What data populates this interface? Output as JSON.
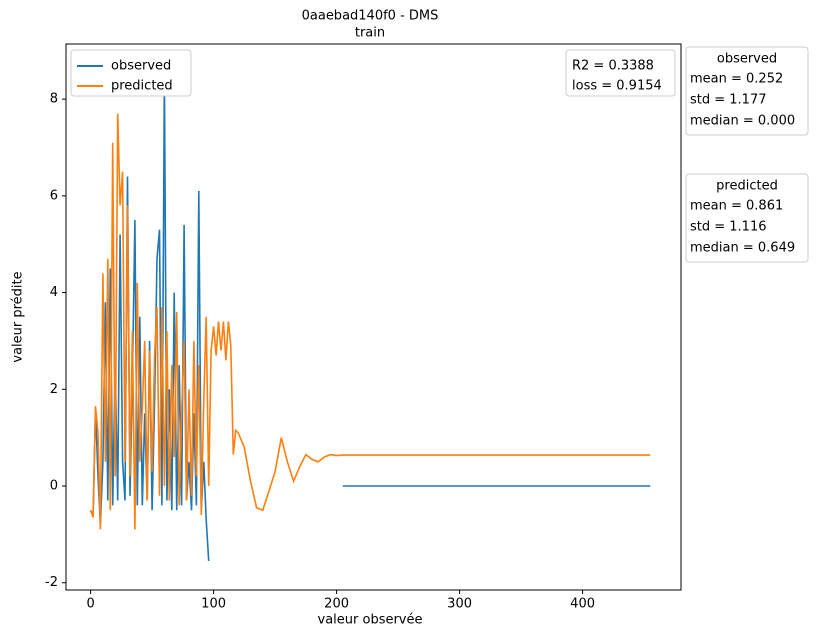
{
  "chart_data": {
    "type": "line",
    "title": "0aaebad140f0 - DMS",
    "subtitle": "train",
    "x_label": "valeur observée",
    "y_label": "valeur prédite",
    "x": [
      0,
      2,
      4,
      6,
      8,
      10,
      12,
      14,
      16,
      18,
      20,
      22,
      24,
      26,
      28,
      30,
      32,
      34,
      36,
      38,
      40,
      42,
      44,
      46,
      48,
      50,
      52,
      54,
      56,
      58,
      60,
      62,
      64,
      66,
      68,
      70,
      72,
      74,
      76,
      78,
      80,
      82,
      84,
      86,
      88,
      90,
      92,
      94,
      96,
      98,
      100,
      102,
      104,
      106,
      108,
      110,
      112,
      114,
      116,
      118,
      120,
      125,
      130,
      135,
      140,
      145,
      150,
      155,
      160,
      165,
      170,
      175,
      180,
      185,
      190,
      195,
      200,
      205,
      300,
      400,
      455
    ],
    "series": [
      {
        "name": "observed",
        "color": "#1f77b4",
        "values": [
          -0.5,
          -0.6,
          1.6,
          0.2,
          -0.8,
          0.5,
          3.8,
          -0.3,
          4.5,
          -0.4,
          2.5,
          -0.3,
          5.2,
          0.5,
          -0.3,
          6.4,
          -0.2,
          2.2,
          5.5,
          -0.4,
          3.5,
          -0.4,
          1.5,
          -0.3,
          3.0,
          -0.5,
          1.8,
          4.7,
          5.3,
          -0.4,
          8.5,
          -0.3,
          2.0,
          -0.5,
          4.0,
          -0.5,
          2.5,
          -0.4,
          5.4,
          -0.3,
          0.5,
          -0.5,
          1.5,
          -0.4,
          6.1,
          -0.5,
          0.5,
          -0.7,
          -1.55,
          null,
          null,
          null,
          null,
          null,
          null,
          null,
          null,
          null,
          null,
          null,
          null,
          null,
          null,
          null,
          null,
          null,
          null,
          null,
          null,
          null,
          null,
          null,
          null,
          null,
          null,
          null,
          null,
          0,
          0,
          0,
          0
        ]
      },
      {
        "name": "predicted",
        "color": "#ff7f0e",
        "values": [
          -0.5,
          -0.65,
          1.65,
          1.1,
          -0.9,
          4.4,
          0.5,
          4.7,
          -0.5,
          7.1,
          0.2,
          7.7,
          5.8,
          6.5,
          0.5,
          5.8,
          0.2,
          3.2,
          -0.9,
          4.2,
          0.5,
          1.6,
          3.0,
          -0.3,
          2.8,
          0.3,
          2.7,
          3.7,
          -0.2,
          3.7,
          0.0,
          3.2,
          -0.3,
          2.5,
          0.6,
          3.6,
          -0.4,
          1.5,
          3.0,
          -0.3,
          2.0,
          -0.2,
          3.0,
          0.2,
          2.5,
          -0.6,
          1.8,
          3.5,
          0.0,
          2.8,
          3.3,
          2.7,
          3.4,
          2.8,
          3.4,
          2.6,
          3.4,
          2.9,
          0.65,
          1.15,
          1.1,
          0.8,
          0.1,
          -0.45,
          -0.5,
          -0.1,
          0.3,
          1.0,
          0.5,
          0.1,
          0.4,
          0.65,
          0.55,
          0.5,
          0.6,
          0.65,
          0.63,
          0.64,
          0.64,
          0.64,
          0.64
        ]
      }
    ],
    "xlim": [
      -20,
      480
    ],
    "ylim": [
      -2.15,
      9.14
    ],
    "xticks": [
      0,
      100,
      200,
      300,
      400
    ],
    "yticks": [
      -2,
      0,
      2,
      4,
      6,
      8
    ],
    "legend": "upper left",
    "annotations": [
      "R2 = 0.3388",
      "loss = 0.9154"
    ],
    "stats": [
      {
        "title": "observed",
        "lines": [
          "mean = 0.252",
          "std = 1.177",
          "median = 0.000"
        ]
      },
      {
        "title": "predicted",
        "lines": [
          "mean = 0.861",
          "std = 1.116",
          "median = 0.649"
        ]
      }
    ]
  }
}
